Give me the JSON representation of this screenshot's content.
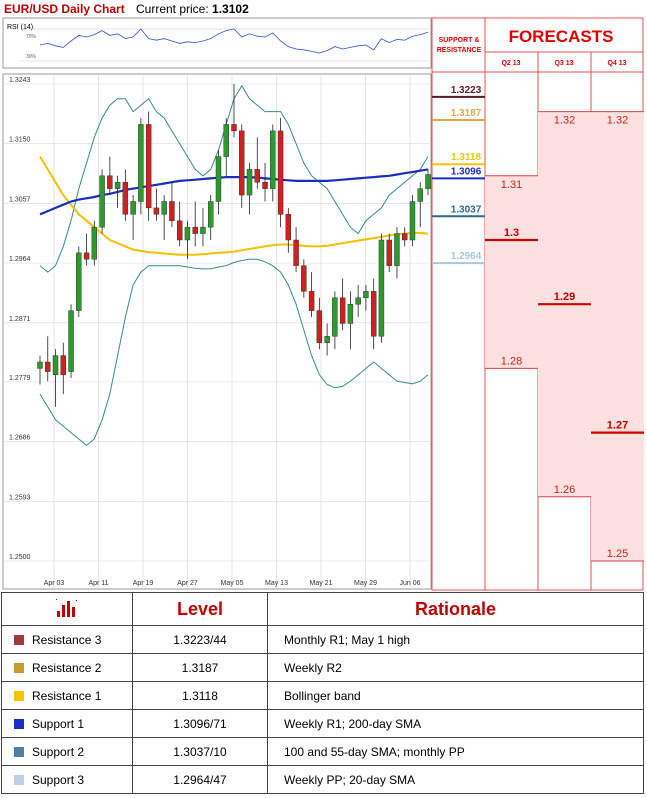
{
  "header": {
    "title": "EUR/USD Daily Chart",
    "price_label": "Current price:",
    "price_value": "1.3102"
  },
  "rsi": {
    "label": "RSI (14)",
    "upper": "70%",
    "lower": "30%"
  },
  "forecasts": {
    "title": "FORECASTS",
    "sr_label_1": "SUPPORT &",
    "sr_label_2": "RESISTANCE",
    "quarters": [
      "Q2 13",
      "Q3 13",
      "Q4 13"
    ]
  },
  "table": {
    "headers": {
      "level": "Level",
      "rationale": "Rationale"
    },
    "rows": [
      {
        "name": "Resistance 3",
        "level": "1.3223/44",
        "rationale": "Monthly R1; May 1 high",
        "color": "#9e3a3a"
      },
      {
        "name": "Resistance 2",
        "level": "1.3187",
        "rationale": "Weekly R2",
        "color": "#c99a2e"
      },
      {
        "name": "Resistance 1",
        "level": "1.3118",
        "rationale": "Bollinger band",
        "color": "#f5c400"
      },
      {
        "name": "Support 1",
        "level": "1.3096/71",
        "rationale": "Weekly R1; 200-day SMA",
        "color": "#1a2fbf"
      },
      {
        "name": "Support 2",
        "level": "1.3037/10",
        "rationale": "100 and 55-day SMA; monthly PP",
        "color": "#4a7fae"
      },
      {
        "name": "Support 3",
        "level": "1.2964/47",
        "rationale": "Weekly PP; 20-day SMA",
        "color": "#bcd2e4"
      }
    ]
  },
  "chart_data": {
    "type": "candlestick",
    "ylim": [
      1.25,
      1.3243
    ],
    "yticks": [
      "1.3243",
      "1.3150",
      "1.3057",
      "1.2964",
      "1.2871",
      "1.2779",
      "1.2686",
      "1.2593",
      "1.2500"
    ],
    "xticks": [
      "Apr 03",
      "Apr 11",
      "Apr 19",
      "Apr 27",
      "May 05",
      "May 13",
      "May 21",
      "May 29",
      "Jun 06"
    ],
    "candles": [
      [
        1.28,
        1.282,
        1.2775,
        1.281
      ],
      [
        1.281,
        1.285,
        1.278,
        1.2795
      ],
      [
        1.279,
        1.283,
        1.274,
        1.282
      ],
      [
        1.282,
        1.284,
        1.276,
        1.279
      ],
      [
        1.2795,
        1.29,
        1.2785,
        1.289
      ],
      [
        1.289,
        1.299,
        1.288,
        1.298
      ],
      [
        1.298,
        1.301,
        1.296,
        1.297
      ],
      [
        1.297,
        1.303,
        1.296,
        1.302
      ],
      [
        1.302,
        1.311,
        1.301,
        1.31
      ],
      [
        1.31,
        1.313,
        1.307,
        1.308
      ],
      [
        1.308,
        1.31,
        1.305,
        1.309
      ],
      [
        1.309,
        1.311,
        1.303,
        1.304
      ],
      [
        1.304,
        1.307,
        1.3,
        1.306
      ],
      [
        1.306,
        1.319,
        1.304,
        1.318
      ],
      [
        1.318,
        1.32,
        1.303,
        1.305
      ],
      [
        1.305,
        1.308,
        1.303,
        1.304
      ],
      [
        1.304,
        1.307,
        1.3,
        1.306
      ],
      [
        1.306,
        1.309,
        1.302,
        1.303
      ],
      [
        1.303,
        1.306,
        1.299,
        1.3
      ],
      [
        1.3,
        1.303,
        1.297,
        1.302
      ],
      [
        1.302,
        1.306,
        1.299,
        1.301
      ],
      [
        1.301,
        1.305,
        1.299,
        1.302
      ],
      [
        1.302,
        1.307,
        1.3,
        1.306
      ],
      [
        1.306,
        1.314,
        1.304,
        1.313
      ],
      [
        1.313,
        1.319,
        1.31,
        1.318
      ],
      [
        1.318,
        1.3243,
        1.316,
        1.317
      ],
      [
        1.317,
        1.318,
        1.305,
        1.307
      ],
      [
        1.307,
        1.312,
        1.304,
        1.311
      ],
      [
        1.311,
        1.316,
        1.308,
        1.309
      ],
      [
        1.309,
        1.312,
        1.306,
        1.308
      ],
      [
        1.308,
        1.318,
        1.306,
        1.317
      ],
      [
        1.317,
        1.319,
        1.302,
        1.304
      ],
      [
        1.304,
        1.305,
        1.298,
        1.3
      ],
      [
        1.3,
        1.302,
        1.295,
        1.296
      ],
      [
        1.296,
        1.297,
        1.291,
        1.292
      ],
      [
        1.292,
        1.295,
        1.288,
        1.289
      ],
      [
        1.289,
        1.291,
        1.283,
        1.284
      ],
      [
        1.284,
        1.287,
        1.282,
        1.285
      ],
      [
        1.285,
        1.292,
        1.283,
        1.291
      ],
      [
        1.291,
        1.294,
        1.286,
        1.287
      ],
      [
        1.287,
        1.292,
        1.283,
        1.29
      ],
      [
        1.29,
        1.293,
        1.288,
        1.291
      ],
      [
        1.291,
        1.293,
        1.289,
        1.292
      ],
      [
        1.292,
        1.294,
        1.283,
        1.285
      ],
      [
        1.285,
        1.301,
        1.284,
        1.3
      ],
      [
        1.3,
        1.301,
        1.295,
        1.296
      ],
      [
        1.296,
        1.302,
        1.294,
        1.301
      ],
      [
        1.301,
        1.302,
        1.299,
        1.3
      ],
      [
        1.3,
        1.307,
        1.299,
        1.306
      ],
      [
        1.306,
        1.309,
        1.302,
        1.308
      ],
      [
        1.308,
        1.311,
        1.307,
        1.3102
      ]
    ],
    "ma200": [
      1.304,
      1.3045,
      1.305,
      1.3055,
      1.306,
      1.3063,
      1.3065,
      1.3067,
      1.307,
      1.3072,
      1.3075,
      1.3078,
      1.308,
      1.3082,
      1.3084,
      1.3086,
      1.3088,
      1.309,
      1.3092,
      1.3093,
      1.3094,
      1.3095,
      1.3096,
      1.3097,
      1.3098,
      1.3098,
      1.3098,
      1.3098,
      1.3097,
      1.3096,
      1.3095,
      1.3094,
      1.3093,
      1.3092,
      1.3092,
      1.3092,
      1.3092,
      1.3092,
      1.3093,
      1.3094,
      1.3095,
      1.3096,
      1.3097,
      1.3098,
      1.3099,
      1.31,
      1.3102,
      1.3104,
      1.3106,
      1.3108,
      1.311
    ],
    "ma100": [
      1.313,
      1.311,
      1.309,
      1.307,
      1.3055,
      1.304,
      1.303,
      1.302,
      1.301,
      1.3,
      1.2995,
      1.299,
      1.2985,
      1.2983,
      1.2981,
      1.298,
      1.2979,
      1.2978,
      1.2977,
      1.2977,
      1.2977,
      1.2978,
      1.2979,
      1.298,
      1.2981,
      1.2982,
      1.2984,
      1.2986,
      1.2988,
      1.299,
      1.2992,
      1.2993,
      1.2993,
      1.2992,
      1.2991,
      1.299,
      1.299,
      1.2991,
      1.2993,
      1.2995,
      1.2997,
      1.2999,
      1.3001,
      1.3003,
      1.3005,
      1.3007,
      1.3009,
      1.301,
      1.3011,
      1.3011,
      1.301
    ],
    "bb_upper": [
      1.296,
      1.295,
      1.296,
      1.299,
      1.303,
      1.308,
      1.312,
      1.316,
      1.319,
      1.321,
      1.322,
      1.322,
      1.32,
      1.321,
      1.322,
      1.32,
      1.319,
      1.317,
      1.315,
      1.313,
      1.311,
      1.31,
      1.311,
      1.314,
      1.318,
      1.322,
      1.324,
      1.322,
      1.321,
      1.32,
      1.32,
      1.32,
      1.318,
      1.315,
      1.312,
      1.31,
      1.309,
      1.308,
      1.306,
      1.304,
      1.302,
      1.301,
      1.303,
      1.304,
      1.305,
      1.307,
      1.308,
      1.309,
      1.31,
      1.311,
      1.313
    ],
    "bb_lower": [
      1.276,
      1.274,
      1.272,
      1.271,
      1.27,
      1.269,
      1.268,
      1.269,
      1.272,
      1.276,
      1.282,
      1.288,
      1.293,
      1.295,
      1.296,
      1.296,
      1.296,
      1.296,
      1.296,
      1.2958,
      1.2956,
      1.2955,
      1.2955,
      1.2958,
      1.296,
      1.2965,
      1.2968,
      1.297,
      1.297,
      1.2966,
      1.296,
      1.295,
      1.293,
      1.29,
      1.286,
      1.282,
      1.279,
      1.2775,
      1.277,
      1.2772,
      1.278,
      1.279,
      1.28,
      1.281,
      1.28,
      1.279,
      1.278,
      1.2778,
      1.2776,
      1.278,
      1.279
    ],
    "rsi": [
      50,
      52,
      49,
      47,
      55,
      62,
      60,
      63,
      68,
      62,
      64,
      58,
      60,
      70,
      58,
      56,
      58,
      55,
      52,
      54,
      53,
      55,
      58,
      64,
      68,
      70,
      60,
      64,
      61,
      60,
      65,
      55,
      48,
      45,
      44,
      42,
      40,
      43,
      48,
      45,
      47,
      49,
      50,
      44,
      58,
      53,
      57,
      56,
      61,
      63,
      66
    ],
    "levels": [
      {
        "value": 1.3223,
        "label": "1.3223",
        "color": "#5a1a2a"
      },
      {
        "value": 1.3187,
        "label": "1.3187",
        "color": "#e0a84a"
      },
      {
        "value": 1.3118,
        "label": "1.3118",
        "color": "#f5c400"
      },
      {
        "value": 1.3096,
        "label": "1.3096",
        "color": "#1a2fbf"
      },
      {
        "value": 1.3037,
        "label": "1.3037",
        "color": "#2a6a8a"
      },
      {
        "value": 1.2964,
        "label": "1.2964",
        "color": "#a8c8d8"
      }
    ],
    "forecasts": [
      {
        "quarter": "Q2 13",
        "top": 1.31,
        "bottom": 1.28,
        "median": 1.3,
        "labels": {
          "top": "1.31",
          "median": "1.3",
          "bottom": "1.28"
        }
      },
      {
        "quarter": "Q3 13",
        "top": 1.32,
        "bottom": 1.26,
        "median": 1.29,
        "labels": {
          "top": "1.32",
          "median": "1.29",
          "bottom": "1.26"
        }
      },
      {
        "quarter": "Q4 13",
        "top": 1.32,
        "bottom": 1.25,
        "median": 1.27,
        "labels": {
          "top": "1.32",
          "median": "1.27",
          "bottom": "1.25"
        }
      }
    ]
  }
}
